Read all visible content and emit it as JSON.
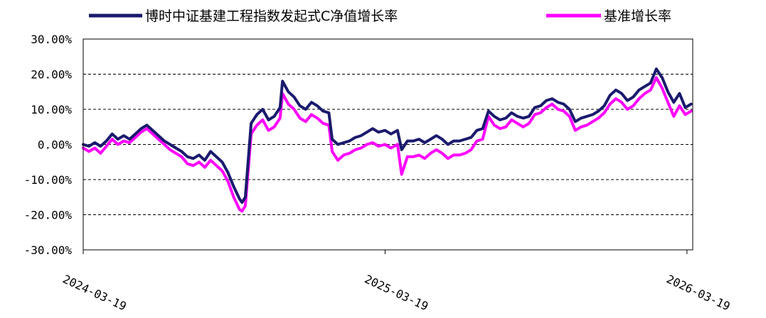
{
  "chart_data": {
    "type": "line",
    "title": "",
    "xlabel": "",
    "ylabel": "",
    "ylim": [
      -30,
      30
    ],
    "y_ticks": [
      30,
      20,
      10,
      0,
      -10,
      -20,
      -30
    ],
    "y_tick_labels": [
      "30.00%",
      "20.00%",
      "10.00%",
      "0.00%",
      "-10.00%",
      "-20.00%",
      "-30.00%"
    ],
    "x_range": [
      "2024-03-19",
      "2026-03-26"
    ],
    "x_ticks": [
      "2024-03-19",
      "2025-03-19",
      "2026-03-19"
    ],
    "grid": "horizontal-dashed",
    "legend": "top",
    "series": [
      {
        "name": "博时中证基建工程指数发起式C净值增长率",
        "color": "#1a1a6e",
        "points": [
          [
            "2024-03-19",
            0.0
          ],
          [
            "2024-03-26",
            -0.5
          ],
          [
            "2024-04-02",
            0.5
          ],
          [
            "2024-04-09",
            -0.5
          ],
          [
            "2024-04-16",
            1.0
          ],
          [
            "2024-04-23",
            3.0
          ],
          [
            "2024-04-30",
            1.5
          ],
          [
            "2024-05-07",
            2.5
          ],
          [
            "2024-05-14",
            1.5
          ],
          [
            "2024-05-21",
            3.0
          ],
          [
            "2024-05-28",
            4.5
          ],
          [
            "2024-06-04",
            5.5
          ],
          [
            "2024-06-11",
            4.0
          ],
          [
            "2024-06-18",
            2.5
          ],
          [
            "2024-06-25",
            1.0
          ],
          [
            "2024-07-02",
            0.0
          ],
          [
            "2024-07-09",
            -1.0
          ],
          [
            "2024-07-16",
            -2.0
          ],
          [
            "2024-07-23",
            -3.5
          ],
          [
            "2024-07-30",
            -4.0
          ],
          [
            "2024-08-06",
            -3.0
          ],
          [
            "2024-08-13",
            -4.5
          ],
          [
            "2024-08-20",
            -2.0
          ],
          [
            "2024-08-27",
            -3.5
          ],
          [
            "2024-09-03",
            -5.0
          ],
          [
            "2024-09-10",
            -8.0
          ],
          [
            "2024-09-17",
            -12.0
          ],
          [
            "2024-09-24",
            -15.5
          ],
          [
            "2024-09-27",
            -16.5
          ],
          [
            "2024-10-01",
            -15.0
          ],
          [
            "2024-10-08",
            6.0
          ],
          [
            "2024-10-15",
            8.5
          ],
          [
            "2024-10-22",
            10.0
          ],
          [
            "2024-10-29",
            7.0
          ],
          [
            "2024-11-05",
            8.0
          ],
          [
            "2024-11-12",
            10.5
          ],
          [
            "2024-11-15",
            18.0
          ],
          [
            "2024-11-22",
            15.0
          ],
          [
            "2024-11-29",
            13.5
          ],
          [
            "2024-12-06",
            11.0
          ],
          [
            "2024-12-13",
            10.0
          ],
          [
            "2024-12-20",
            12.0
          ],
          [
            "2024-12-27",
            11.0
          ],
          [
            "2025-01-03",
            9.5
          ],
          [
            "2025-01-10",
            9.0
          ],
          [
            "2025-01-14",
            1.5
          ],
          [
            "2025-01-21",
            0.0
          ],
          [
            "2025-01-28",
            0.5
          ],
          [
            "2025-02-04",
            1.0
          ],
          [
            "2025-02-11",
            2.0
          ],
          [
            "2025-02-18",
            2.5
          ],
          [
            "2025-02-25",
            3.5
          ],
          [
            "2025-03-04",
            4.5
          ],
          [
            "2025-03-11",
            3.5
          ],
          [
            "2025-03-19",
            4.0
          ],
          [
            "2025-03-26",
            3.0
          ],
          [
            "2025-04-03",
            4.0
          ],
          [
            "2025-04-08",
            -1.5
          ],
          [
            "2025-04-15",
            1.0
          ],
          [
            "2025-04-22",
            1.0
          ],
          [
            "2025-04-29",
            1.5
          ],
          [
            "2025-05-06",
            0.5
          ],
          [
            "2025-05-13",
            1.5
          ],
          [
            "2025-05-20",
            2.5
          ],
          [
            "2025-05-27",
            1.5
          ],
          [
            "2025-06-03",
            0.0
          ],
          [
            "2025-06-10",
            1.0
          ],
          [
            "2025-06-17",
            1.0
          ],
          [
            "2025-06-24",
            1.5
          ],
          [
            "2025-07-01",
            2.0
          ],
          [
            "2025-07-08",
            4.0
          ],
          [
            "2025-07-15",
            4.5
          ],
          [
            "2025-07-22",
            9.5
          ],
          [
            "2025-07-29",
            8.0
          ],
          [
            "2025-08-05",
            7.0
          ],
          [
            "2025-08-12",
            7.5
          ],
          [
            "2025-08-19",
            9.0
          ],
          [
            "2025-08-26",
            8.0
          ],
          [
            "2025-09-02",
            7.5
          ],
          [
            "2025-09-09",
            8.0
          ],
          [
            "2025-09-16",
            10.5
          ],
          [
            "2025-09-23",
            11.0
          ],
          [
            "2025-09-30",
            12.5
          ],
          [
            "2025-10-07",
            13.0
          ],
          [
            "2025-10-14",
            12.0
          ],
          [
            "2025-10-21",
            11.5
          ],
          [
            "2025-10-28",
            10.0
          ],
          [
            "2025-11-04",
            6.5
          ],
          [
            "2025-11-11",
            7.5
          ],
          [
            "2025-11-18",
            8.0
          ],
          [
            "2025-11-25",
            8.5
          ],
          [
            "2025-12-02",
            9.5
          ],
          [
            "2025-12-09",
            11.0
          ],
          [
            "2025-12-16",
            14.0
          ],
          [
            "2025-12-23",
            15.5
          ],
          [
            "2025-12-30",
            14.5
          ],
          [
            "2026-01-06",
            12.5
          ],
          [
            "2026-01-13",
            13.5
          ],
          [
            "2026-01-20",
            15.5
          ],
          [
            "2026-01-27",
            16.5
          ],
          [
            "2026-02-03",
            17.5
          ],
          [
            "2026-02-10",
            21.5
          ],
          [
            "2026-02-17",
            19.0
          ],
          [
            "2026-02-24",
            15.0
          ],
          [
            "2026-03-03",
            12.0
          ],
          [
            "2026-03-10",
            14.5
          ],
          [
            "2026-03-17",
            10.5
          ],
          [
            "2026-03-24",
            11.5
          ]
        ]
      },
      {
        "name": "基准增长率",
        "color": "#ff00ff",
        "points": [
          [
            "2024-03-19",
            -1.0
          ],
          [
            "2024-03-26",
            -2.0
          ],
          [
            "2024-04-02",
            -1.0
          ],
          [
            "2024-04-09",
            -2.5
          ],
          [
            "2024-04-16",
            -0.5
          ],
          [
            "2024-04-23",
            1.5
          ],
          [
            "2024-04-30",
            0.0
          ],
          [
            "2024-05-07",
            1.0
          ],
          [
            "2024-05-14",
            0.5
          ],
          [
            "2024-05-21",
            2.0
          ],
          [
            "2024-05-28",
            3.5
          ],
          [
            "2024-06-04",
            4.5
          ],
          [
            "2024-06-11",
            3.0
          ],
          [
            "2024-06-18",
            1.5
          ],
          [
            "2024-06-25",
            0.0
          ],
          [
            "2024-07-02",
            -1.5
          ],
          [
            "2024-07-09",
            -2.5
          ],
          [
            "2024-07-16",
            -3.5
          ],
          [
            "2024-07-23",
            -5.5
          ],
          [
            "2024-07-30",
            -6.0
          ],
          [
            "2024-08-06",
            -5.0
          ],
          [
            "2024-08-13",
            -6.5
          ],
          [
            "2024-08-20",
            -4.5
          ],
          [
            "2024-08-27",
            -6.0
          ],
          [
            "2024-09-03",
            -7.5
          ],
          [
            "2024-09-10",
            -10.5
          ],
          [
            "2024-09-17",
            -15.0
          ],
          [
            "2024-09-24",
            -18.5
          ],
          [
            "2024-09-27",
            -19.0
          ],
          [
            "2024-10-01",
            -17.5
          ],
          [
            "2024-10-08",
            3.0
          ],
          [
            "2024-10-15",
            5.5
          ],
          [
            "2024-10-22",
            7.0
          ],
          [
            "2024-10-29",
            4.0
          ],
          [
            "2024-11-05",
            5.0
          ],
          [
            "2024-11-12",
            7.5
          ],
          [
            "2024-11-15",
            14.5
          ],
          [
            "2024-11-22",
            11.5
          ],
          [
            "2024-11-29",
            10.0
          ],
          [
            "2024-12-06",
            7.5
          ],
          [
            "2024-12-13",
            6.5
          ],
          [
            "2024-12-20",
            8.5
          ],
          [
            "2024-12-27",
            7.5
          ],
          [
            "2025-01-03",
            6.0
          ],
          [
            "2025-01-10",
            5.5
          ],
          [
            "2025-01-14",
            -2.0
          ],
          [
            "2025-01-21",
            -4.5
          ],
          [
            "2025-01-28",
            -3.0
          ],
          [
            "2025-02-04",
            -2.5
          ],
          [
            "2025-02-11",
            -1.5
          ],
          [
            "2025-02-18",
            -1.0
          ],
          [
            "2025-02-25",
            0.0
          ],
          [
            "2025-03-04",
            0.5
          ],
          [
            "2025-03-11",
            -0.5
          ],
          [
            "2025-03-19",
            0.0
          ],
          [
            "2025-03-26",
            -1.0
          ],
          [
            "2025-04-03",
            0.0
          ],
          [
            "2025-04-08",
            -8.5
          ],
          [
            "2025-04-15",
            -3.5
          ],
          [
            "2025-04-22",
            -3.5
          ],
          [
            "2025-04-29",
            -3.0
          ],
          [
            "2025-05-06",
            -4.0
          ],
          [
            "2025-05-13",
            -2.5
          ],
          [
            "2025-05-20",
            -1.5
          ],
          [
            "2025-05-27",
            -2.5
          ],
          [
            "2025-06-03",
            -4.0
          ],
          [
            "2025-06-10",
            -3.0
          ],
          [
            "2025-06-17",
            -3.0
          ],
          [
            "2025-06-24",
            -2.5
          ],
          [
            "2025-07-01",
            -1.5
          ],
          [
            "2025-07-08",
            1.0
          ],
          [
            "2025-07-15",
            1.5
          ],
          [
            "2025-07-22",
            8.0
          ],
          [
            "2025-07-29",
            5.5
          ],
          [
            "2025-08-05",
            4.5
          ],
          [
            "2025-08-12",
            5.0
          ],
          [
            "2025-08-19",
            7.0
          ],
          [
            "2025-08-26",
            6.0
          ],
          [
            "2025-09-02",
            5.0
          ],
          [
            "2025-09-09",
            6.0
          ],
          [
            "2025-09-16",
            8.5
          ],
          [
            "2025-09-23",
            9.0
          ],
          [
            "2025-09-30",
            10.5
          ],
          [
            "2025-10-07",
            11.5
          ],
          [
            "2025-10-14",
            10.0
          ],
          [
            "2025-10-21",
            9.5
          ],
          [
            "2025-10-28",
            8.0
          ],
          [
            "2025-11-04",
            4.0
          ],
          [
            "2025-11-11",
            5.0
          ],
          [
            "2025-11-18",
            5.5
          ],
          [
            "2025-11-25",
            6.5
          ],
          [
            "2025-12-02",
            7.5
          ],
          [
            "2025-12-09",
            9.0
          ],
          [
            "2025-12-16",
            11.5
          ],
          [
            "2025-12-23",
            13.0
          ],
          [
            "2025-12-30",
            12.0
          ],
          [
            "2026-01-06",
            10.0
          ],
          [
            "2026-01-13",
            11.0
          ],
          [
            "2026-01-20",
            13.0
          ],
          [
            "2026-01-27",
            14.5
          ],
          [
            "2026-02-03",
            15.5
          ],
          [
            "2026-02-10",
            19.0
          ],
          [
            "2026-02-17",
            16.0
          ],
          [
            "2026-02-24",
            12.0
          ],
          [
            "2026-03-03",
            8.0
          ],
          [
            "2026-03-10",
            11.0
          ],
          [
            "2026-03-17",
            8.5
          ],
          [
            "2026-03-24",
            9.5
          ]
        ]
      }
    ]
  }
}
